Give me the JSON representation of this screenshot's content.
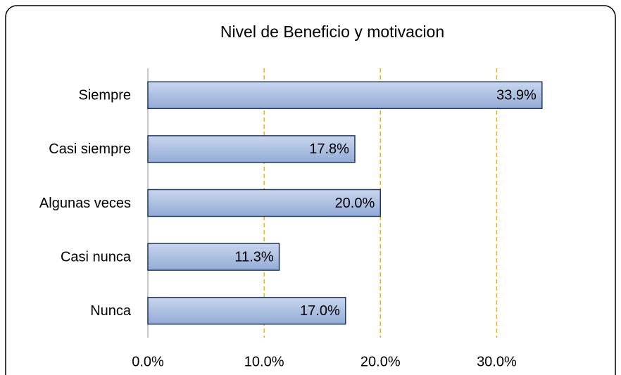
{
  "chart_data": {
    "type": "hbar",
    "title": "Nivel de Beneficio y motivacion",
    "categories": [
      "Siempre",
      "Casi siempre",
      "Algunas veces",
      "Casi nunca",
      "Nunca"
    ],
    "values": [
      33.9,
      17.8,
      20.0,
      11.3,
      17.0
    ],
    "value_labels": [
      "33.9%",
      "17.8%",
      "20.0%",
      "11.3%",
      "17.0%"
    ],
    "color": "#a9bde0",
    "xlim": [
      0,
      35
    ],
    "xticks": [
      {
        "value": 0,
        "label": "0.0%"
      },
      {
        "value": 10,
        "label": "10.0%"
      },
      {
        "value": 20,
        "label": "20.0%"
      },
      {
        "value": 30,
        "label": "30.0%"
      }
    ],
    "grid": true
  }
}
